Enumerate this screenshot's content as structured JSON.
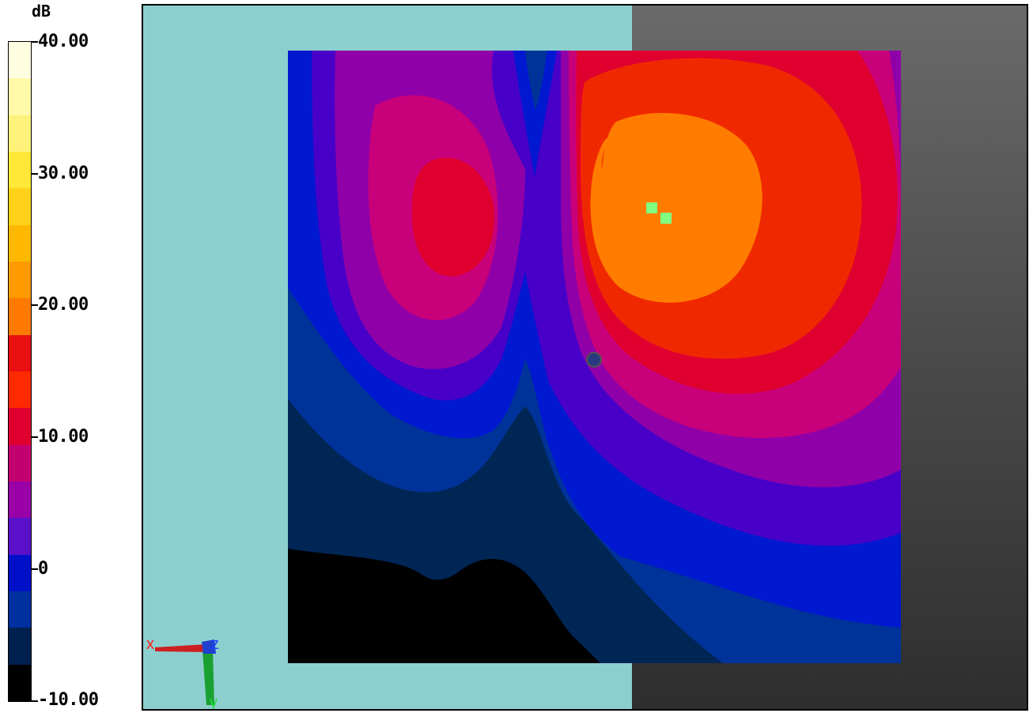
{
  "legend": {
    "unit": "dB",
    "labels": [
      "40.00",
      "30.00",
      "20.00",
      "10.00",
      "0",
      "-10.00"
    ],
    "colors": [
      "#fffde0",
      "#fff9a8",
      "#fff27a",
      "#ffe838",
      "#ffd21a",
      "#ffb800",
      "#ff9a00",
      "#ff7a00",
      "#e81010",
      "#ff2a00",
      "#e00030",
      "#c40070",
      "#9a00a8",
      "#5a10c8",
      "#0010c8",
      "#0030a0",
      "#002050",
      "#000000"
    ]
  },
  "field_colors": {
    "black": "#000000",
    "navy_dark": "#002656",
    "navy": "#003399",
    "blue": "#0018d0",
    "indigo": "#4800c8",
    "purple": "#9000a8",
    "magenta": "#c8007a",
    "crimson": "#e00030",
    "red": "#f02800",
    "orange": "#ff7c00",
    "green": "#80ff80"
  },
  "axes": {
    "x_label": "x",
    "y_label": "y",
    "z_label": "z"
  }
}
